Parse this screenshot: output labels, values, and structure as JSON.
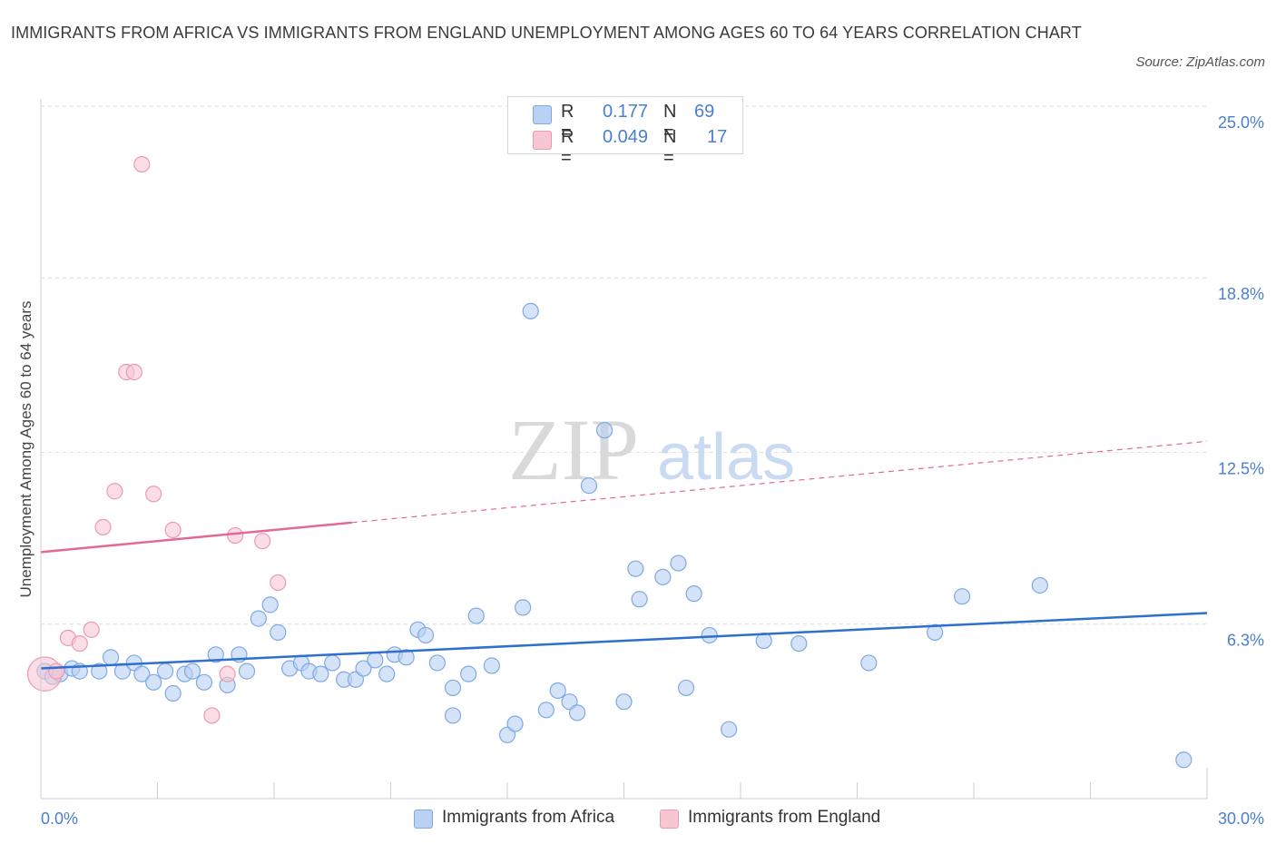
{
  "title": "IMMIGRANTS FROM AFRICA VS IMMIGRANTS FROM ENGLAND UNEMPLOYMENT AMONG AGES 60 TO 64 YEARS CORRELATION CHART",
  "source": "Source: ZipAtlas.com",
  "watermark": {
    "zip": "ZIP",
    "atlas": "atlas"
  },
  "colors": {
    "africa_fill": "#b9d1f3",
    "africa_stroke": "#7ea9e2",
    "africa_line": "#2f6fcf",
    "england_fill": "#f7c6d3",
    "england_stroke": "#ec9ab2",
    "england_line": "#e26a92",
    "tick_label": "#4a7fd0",
    "grid": "#dcdcdc"
  },
  "legend_top": {
    "rows": [
      {
        "r_label": "R =",
        "r_value": "0.177",
        "n_label": "N =",
        "n_value": "69",
        "series": "africa"
      },
      {
        "r_label": "R =",
        "r_value": "0.049",
        "n_label": "N =",
        "n_value": "17",
        "series": "england"
      }
    ]
  },
  "legend_bottom": [
    "Immigrants from Africa",
    "Immigrants from England"
  ],
  "chart_data": {
    "type": "scatter",
    "title": "IMMIGRANTS FROM AFRICA VS IMMIGRANTS FROM ENGLAND UNEMPLOYMENT AMONG AGES 60 TO 64 YEARS CORRELATION CHART",
    "xlabel": "",
    "ylabel": "Unemployment Among Ages 60 to 64 years",
    "xlim": [
      0,
      30
    ],
    "ylim": [
      0,
      25
    ],
    "x_tick_labels": [
      {
        "value": 0,
        "label": "0.0%"
      },
      {
        "value": 30,
        "label": "30.0%"
      }
    ],
    "y_tick_labels": [
      {
        "value": 6.3,
        "label": "6.3%"
      },
      {
        "value": 12.5,
        "label": "12.5%"
      },
      {
        "value": 18.8,
        "label": "18.8%"
      },
      {
        "value": 25.0,
        "label": "25.0%"
      }
    ],
    "x_minor_ticks": [
      3,
      6,
      9,
      12,
      15,
      18,
      21,
      24,
      27
    ],
    "grid": true,
    "series": [
      {
        "name": "Immigrants from Africa",
        "key": "africa",
        "r": 0.177,
        "n": 69,
        "trend": {
          "x": [
            0,
            30
          ],
          "y": [
            4.7,
            6.7
          ],
          "dashed_from": null
        },
        "points": [
          {
            "x": 0.1,
            "y": 4.6,
            "s": 1
          },
          {
            "x": 0.3,
            "y": 4.4,
            "s": 1
          },
          {
            "x": 0.5,
            "y": 4.5,
            "s": 1
          },
          {
            "x": 0.8,
            "y": 4.7,
            "s": 1
          },
          {
            "x": 1.0,
            "y": 4.6,
            "s": 1
          },
          {
            "x": 1.5,
            "y": 4.6,
            "s": 1
          },
          {
            "x": 1.8,
            "y": 5.1,
            "s": 1
          },
          {
            "x": 2.1,
            "y": 4.6,
            "s": 1
          },
          {
            "x": 2.4,
            "y": 4.9,
            "s": 1
          },
          {
            "x": 2.6,
            "y": 4.5,
            "s": 1
          },
          {
            "x": 2.9,
            "y": 4.2,
            "s": 1
          },
          {
            "x": 3.2,
            "y": 4.6,
            "s": 1
          },
          {
            "x": 3.4,
            "y": 3.8,
            "s": 1
          },
          {
            "x": 3.7,
            "y": 4.5,
            "s": 1
          },
          {
            "x": 3.9,
            "y": 4.6,
            "s": 1
          },
          {
            "x": 4.2,
            "y": 4.2,
            "s": 1
          },
          {
            "x": 4.5,
            "y": 5.2,
            "s": 1
          },
          {
            "x": 4.8,
            "y": 4.1,
            "s": 1
          },
          {
            "x": 5.1,
            "y": 5.2,
            "s": 1
          },
          {
            "x": 5.3,
            "y": 4.6,
            "s": 1
          },
          {
            "x": 5.6,
            "y": 6.5,
            "s": 1
          },
          {
            "x": 5.9,
            "y": 7.0,
            "s": 1
          },
          {
            "x": 6.1,
            "y": 6.0,
            "s": 1
          },
          {
            "x": 6.4,
            "y": 4.7,
            "s": 1
          },
          {
            "x": 6.7,
            "y": 4.9,
            "s": 1
          },
          {
            "x": 6.9,
            "y": 4.6,
            "s": 1
          },
          {
            "x": 7.2,
            "y": 4.5,
            "s": 1
          },
          {
            "x": 7.5,
            "y": 4.9,
            "s": 1
          },
          {
            "x": 7.8,
            "y": 4.3,
            "s": 1
          },
          {
            "x": 8.1,
            "y": 4.3,
            "s": 1
          },
          {
            "x": 8.3,
            "y": 4.7,
            "s": 1
          },
          {
            "x": 8.6,
            "y": 5.0,
            "s": 1
          },
          {
            "x": 8.9,
            "y": 4.5,
            "s": 1
          },
          {
            "x": 9.1,
            "y": 5.2,
            "s": 1
          },
          {
            "x": 9.4,
            "y": 5.1,
            "s": 1
          },
          {
            "x": 9.7,
            "y": 6.1,
            "s": 1
          },
          {
            "x": 9.9,
            "y": 5.9,
            "s": 1
          },
          {
            "x": 10.2,
            "y": 4.9,
            "s": 1
          },
          {
            "x": 10.6,
            "y": 4.0,
            "s": 1
          },
          {
            "x": 10.6,
            "y": 3.0,
            "s": 1
          },
          {
            "x": 11.0,
            "y": 4.5,
            "s": 1
          },
          {
            "x": 11.2,
            "y": 6.6,
            "s": 1
          },
          {
            "x": 11.6,
            "y": 4.8,
            "s": 1
          },
          {
            "x": 12.0,
            "y": 2.3,
            "s": 1
          },
          {
            "x": 12.2,
            "y": 2.7,
            "s": 1
          },
          {
            "x": 12.4,
            "y": 6.9,
            "s": 1
          },
          {
            "x": 12.6,
            "y": 17.6,
            "s": 1
          },
          {
            "x": 13.0,
            "y": 3.2,
            "s": 1
          },
          {
            "x": 13.3,
            "y": 3.9,
            "s": 1
          },
          {
            "x": 13.6,
            "y": 3.5,
            "s": 1
          },
          {
            "x": 13.8,
            "y": 3.1,
            "s": 1
          },
          {
            "x": 14.1,
            "y": 11.3,
            "s": 1
          },
          {
            "x": 14.5,
            "y": 13.3,
            "s": 1
          },
          {
            "x": 15.0,
            "y": 3.5,
            "s": 1
          },
          {
            "x": 15.3,
            "y": 8.3,
            "s": 1
          },
          {
            "x": 15.4,
            "y": 7.2,
            "s": 1
          },
          {
            "x": 16.0,
            "y": 8.0,
            "s": 1
          },
          {
            "x": 16.4,
            "y": 8.5,
            "s": 1
          },
          {
            "x": 16.6,
            "y": 4.0,
            "s": 1
          },
          {
            "x": 16.8,
            "y": 7.4,
            "s": 1
          },
          {
            "x": 17.2,
            "y": 5.9,
            "s": 1
          },
          {
            "x": 17.7,
            "y": 2.5,
            "s": 1
          },
          {
            "x": 18.6,
            "y": 5.7,
            "s": 1
          },
          {
            "x": 19.5,
            "y": 5.6,
            "s": 1
          },
          {
            "x": 21.3,
            "y": 4.9,
            "s": 1
          },
          {
            "x": 23.0,
            "y": 6.0,
            "s": 1
          },
          {
            "x": 23.7,
            "y": 7.3,
            "s": 1
          },
          {
            "x": 25.7,
            "y": 7.7,
            "s": 1
          },
          {
            "x": 29.4,
            "y": 1.4,
            "s": 1
          }
        ]
      },
      {
        "name": "Immigrants from England",
        "key": "england",
        "r": 0.049,
        "n": 17,
        "trend": {
          "x": [
            0,
            30
          ],
          "y": [
            8.9,
            12.9
          ],
          "dashed_from": 8.0
        },
        "points": [
          {
            "x": 0.1,
            "y": 4.5,
            "s": 2.2
          },
          {
            "x": 0.4,
            "y": 4.6,
            "s": 1
          },
          {
            "x": 0.7,
            "y": 5.8,
            "s": 1
          },
          {
            "x": 1.0,
            "y": 5.6,
            "s": 1
          },
          {
            "x": 1.3,
            "y": 6.1,
            "s": 1
          },
          {
            "x": 1.6,
            "y": 9.8,
            "s": 1
          },
          {
            "x": 1.9,
            "y": 11.1,
            "s": 1
          },
          {
            "x": 2.2,
            "y": 15.4,
            "s": 1
          },
          {
            "x": 2.4,
            "y": 15.4,
            "s": 1
          },
          {
            "x": 2.6,
            "y": 22.9,
            "s": 1
          },
          {
            "x": 2.9,
            "y": 11.0,
            "s": 1
          },
          {
            "x": 3.4,
            "y": 9.7,
            "s": 1
          },
          {
            "x": 4.4,
            "y": 3.0,
            "s": 1
          },
          {
            "x": 4.8,
            "y": 4.5,
            "s": 1
          },
          {
            "x": 5.0,
            "y": 9.5,
            "s": 1
          },
          {
            "x": 5.7,
            "y": 9.3,
            "s": 1
          },
          {
            "x": 6.1,
            "y": 7.8,
            "s": 1
          }
        ]
      }
    ]
  }
}
